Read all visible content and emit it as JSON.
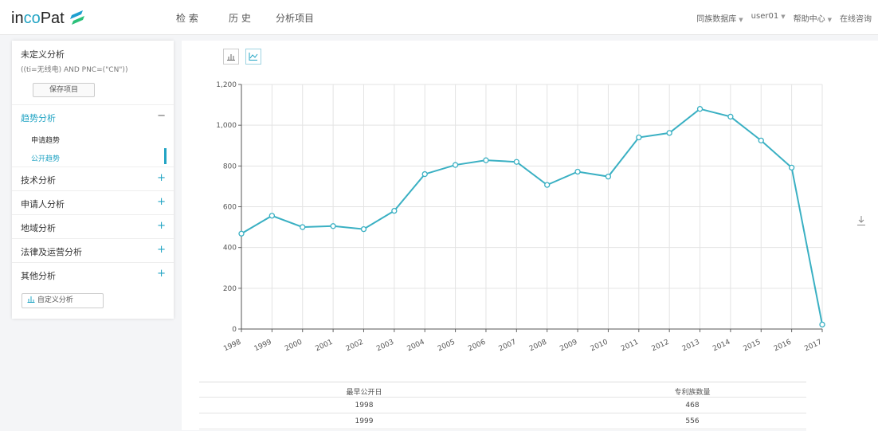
{
  "header": {
    "logo_prefix": "in",
    "logo_mid": "co",
    "logo_suffix": "Pat",
    "nav": [
      "检 索",
      "历 史",
      "分析项目"
    ],
    "right": [
      "同族数据库",
      "user01",
      "帮助中心",
      "在线咨询"
    ]
  },
  "sidebar": {
    "title": "未定义分析",
    "query": "((ti=无线电) AND PNC=(\"CN\"))",
    "save_label": "保存项目",
    "sections": [
      {
        "label": "趋势分析",
        "sign": "−",
        "active": true
      },
      {
        "label": "技术分析",
        "sign": "+"
      },
      {
        "label": "申请人分析",
        "sign": "+"
      },
      {
        "label": "地域分析",
        "sign": "+"
      },
      {
        "label": "法律及运营分析",
        "sign": "+"
      },
      {
        "label": "其他分析",
        "sign": "+"
      }
    ],
    "subitems": [
      {
        "label": "申请趋势",
        "active": false
      },
      {
        "label": "公开趋势",
        "active": true
      }
    ],
    "custom_label": "自定义分析"
  },
  "chart_data": {
    "type": "line",
    "categories": [
      "1998",
      "1999",
      "2000",
      "2001",
      "2002",
      "2003",
      "2004",
      "2005",
      "2006",
      "2007",
      "2008",
      "2009",
      "2010",
      "2011",
      "2012",
      "2013",
      "2014",
      "2015",
      "2016",
      "2017"
    ],
    "values": [
      468,
      556,
      500,
      505,
      490,
      580,
      760,
      805,
      828,
      820,
      707,
      772,
      748,
      940,
      962,
      1080,
      1042,
      925,
      792,
      22
    ],
    "ylim": [
      0,
      1200
    ],
    "yticks": [
      "0",
      "200",
      "400",
      "600",
      "800",
      "1,000",
      "1,200"
    ],
    "grid": true,
    "line_color": "#3ab0c3"
  },
  "table": {
    "headers": [
      "最早公开日",
      "专利族数量"
    ],
    "rows": [
      [
        "1998",
        "468"
      ],
      [
        "1999",
        "556"
      ]
    ]
  }
}
